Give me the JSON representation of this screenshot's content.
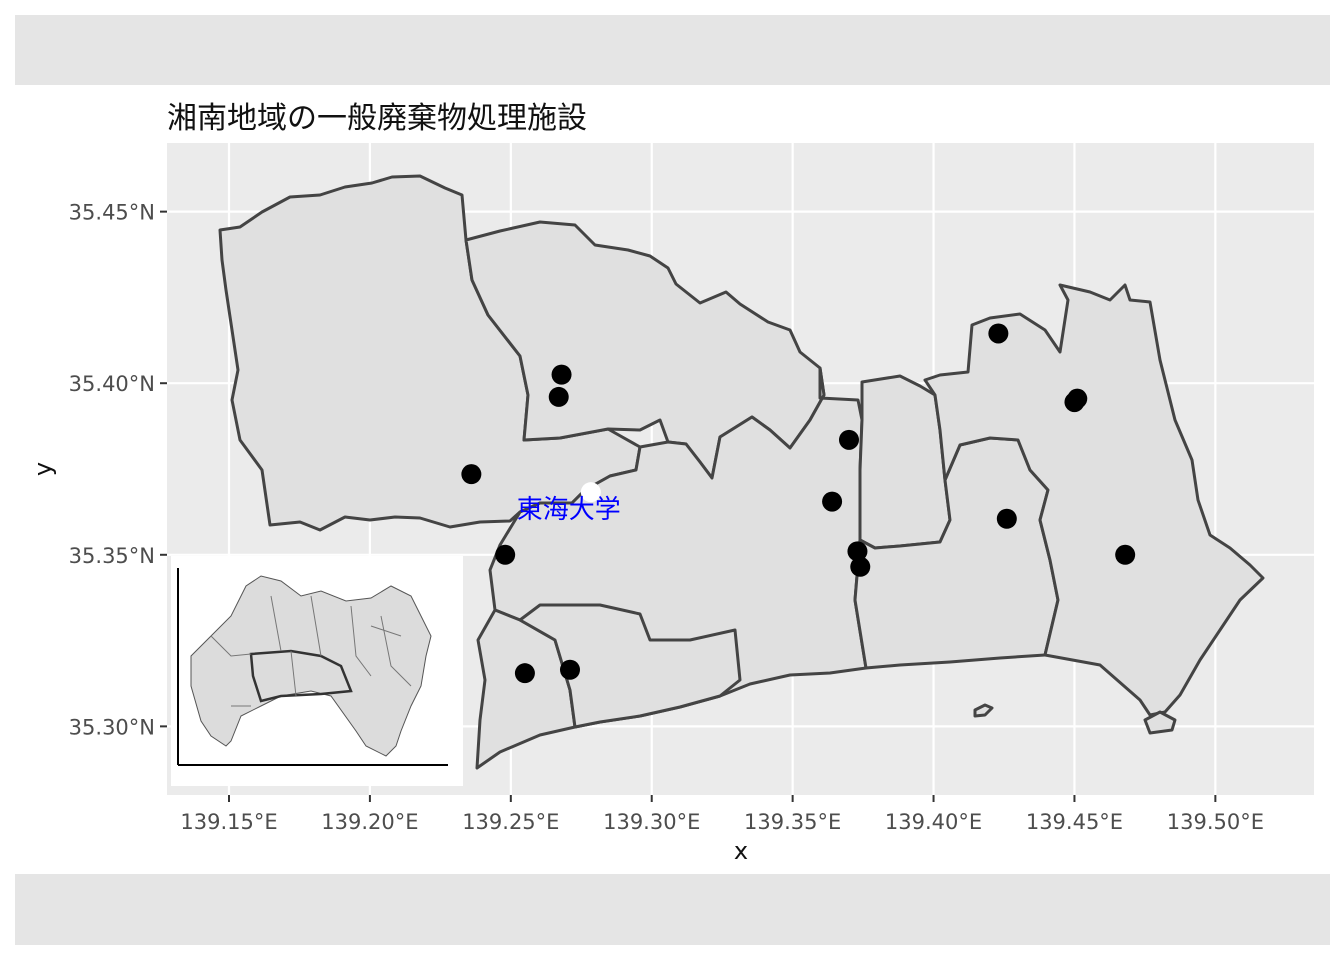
{
  "map": {
    "title": "湘南地域の一般廃棄物処理施設",
    "xlabel": "x",
    "ylabel": "y",
    "x_ticks": [
      "139.15°E",
      "139.20°E",
      "139.25°E",
      "139.30°E",
      "139.35°E",
      "139.40°E",
      "139.45°E",
      "139.50°E"
    ],
    "y_ticks": [
      "35.45°N",
      "35.40°N",
      "35.35°N",
      "35.30°N"
    ],
    "x_tick_values": [
      139.15,
      139.2,
      139.25,
      139.3,
      139.35,
      139.4,
      139.45,
      139.5
    ],
    "y_tick_values": [
      35.45,
      35.4,
      35.35,
      35.3
    ],
    "xlim": [
      139.128,
      139.535
    ],
    "ylim": [
      35.28,
      35.47
    ],
    "panel_color": "#ebebeb",
    "grid_color": "#ffffff",
    "region_fill": "#e0e0e0",
    "region_stroke": "#444444",
    "point_color": "#000000",
    "label": {
      "text": "東海大学",
      "color": "#0000ff",
      "lon": 139.272,
      "lat": 35.363
    },
    "facilities": [
      {
        "lon": 139.236,
        "lat": 35.3735
      },
      {
        "lon": 139.268,
        "lat": 35.4025
      },
      {
        "lon": 139.267,
        "lat": 35.396
      },
      {
        "lon": 139.248,
        "lat": 35.35
      },
      {
        "lon": 139.255,
        "lat": 35.3155
      },
      {
        "lon": 139.271,
        "lat": 35.3165
      },
      {
        "lon": 139.364,
        "lat": 35.3655
      },
      {
        "lon": 139.37,
        "lat": 35.3835
      },
      {
        "lon": 139.373,
        "lat": 35.351
      },
      {
        "lon": 139.374,
        "lat": 35.3465
      },
      {
        "lon": 139.423,
        "lat": 35.4145
      },
      {
        "lon": 139.426,
        "lat": 35.3605
      },
      {
        "lon": 139.45,
        "lat": 35.3945
      },
      {
        "lon": 139.451,
        "lat": 35.3955
      },
      {
        "lon": 139.468,
        "lat": 35.35
      }
    ]
  }
}
